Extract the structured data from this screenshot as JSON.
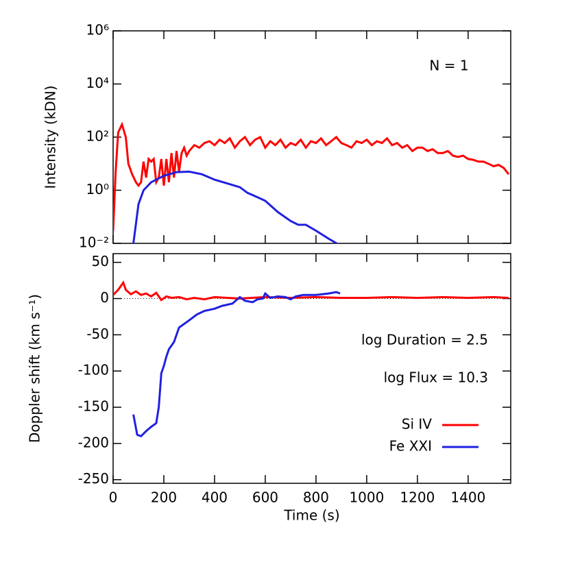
{
  "chart_data": [
    {
      "type": "line",
      "ylabel": "Intensity (kDN)",
      "annotation": "N = 1",
      "log_y": true,
      "xlim": [
        0,
        1568
      ],
      "ylim": [
        0.01,
        1000000
      ],
      "yticks": [
        {
          "value": 1000000,
          "label": "10⁶"
        },
        {
          "value": 10000,
          "label": "10⁴"
        },
        {
          "value": 100,
          "label": "10²"
        },
        {
          "value": 1,
          "label": "10⁰"
        },
        {
          "value": 0.01,
          "label": "10⁻²"
        }
      ],
      "series": [
        {
          "color": "#ff0000",
          "x": [
            0,
            10,
            20,
            35,
            50,
            60,
            75,
            90,
            100,
            110,
            120,
            130,
            140,
            150,
            160,
            170,
            180,
            190,
            200,
            210,
            220,
            230,
            240,
            250,
            260,
            270,
            280,
            290,
            300,
            320,
            340,
            360,
            380,
            400,
            420,
            440,
            460,
            480,
            500,
            520,
            540,
            560,
            580,
            600,
            620,
            640,
            660,
            680,
            700,
            720,
            740,
            760,
            780,
            800,
            820,
            840,
            860,
            880,
            900,
            920,
            940,
            960,
            980,
            1000,
            1020,
            1040,
            1060,
            1080,
            1100,
            1120,
            1140,
            1160,
            1180,
            1200,
            1220,
            1240,
            1260,
            1280,
            1300,
            1320,
            1340,
            1360,
            1380,
            1400,
            1420,
            1440,
            1460,
            1480,
            1500,
            1520,
            1540,
            1560
          ],
          "values": [
            0.03,
            5,
            150,
            300,
            100,
            10,
            4,
            2,
            1.5,
            2,
            12,
            3,
            15,
            12,
            15,
            2,
            3,
            15,
            1.5,
            15,
            2,
            25,
            3,
            30,
            5,
            25,
            40,
            20,
            30,
            50,
            40,
            60,
            70,
            50,
            80,
            60,
            90,
            40,
            70,
            100,
            50,
            80,
            100,
            40,
            70,
            50,
            80,
            40,
            60,
            50,
            80,
            40,
            70,
            60,
            90,
            50,
            70,
            100,
            60,
            50,
            40,
            70,
            60,
            80,
            50,
            70,
            60,
            90,
            50,
            60,
            40,
            50,
            30,
            40,
            40,
            30,
            35,
            25,
            25,
            30,
            20,
            18,
            20,
            15,
            14,
            12,
            12,
            10,
            8,
            9,
            7,
            4
          ]
        },
        {
          "color": "#2020e0",
          "x": [
            80,
            100,
            120,
            150,
            200,
            250,
            300,
            350,
            400,
            450,
            500,
            530,
            560,
            600,
            650,
            700,
            730,
            760,
            800,
            850,
            890
          ],
          "values": [
            0.01,
            0.3,
            1,
            2,
            3.5,
            4.8,
            5,
            4,
            2.5,
            1.8,
            1.3,
            0.8,
            0.6,
            0.4,
            0.15,
            0.07,
            0.05,
            0.05,
            0.03,
            0.015,
            0.009
          ]
        }
      ]
    },
    {
      "type": "line",
      "ylabel": "Doppler shift (km s⁻¹)",
      "xlabel": "Time (s)",
      "annotations": [
        "log Duration = 2.5",
        "log Flux = 10.3"
      ],
      "legend": "lower right",
      "xlim": [
        0,
        1568
      ],
      "xticks": [
        0,
        200,
        400,
        600,
        800,
        1000,
        1200,
        1400
      ],
      "ylim": [
        -255,
        62
      ],
      "yticks": [
        50,
        0,
        -50,
        -100,
        -150,
        -200,
        -250
      ],
      "series": [
        {
          "name": "Si IV",
          "color": "#ff0000",
          "x": [
            0,
            20,
            40,
            50,
            70,
            90,
            110,
            130,
            150,
            170,
            190,
            210,
            230,
            260,
            290,
            320,
            360,
            400,
            450,
            500,
            600,
            700,
            800,
            900,
            1000,
            1100,
            1200,
            1300,
            1400,
            1500,
            1560
          ],
          "values": [
            5,
            12,
            22,
            12,
            6,
            10,
            5,
            7,
            3,
            8,
            -2,
            3,
            1,
            2,
            -1,
            1,
            -1,
            2,
            1,
            0,
            2,
            1,
            2,
            1,
            1,
            2,
            1,
            2,
            1,
            2,
            1
          ]
        },
        {
          "name": "Fe XXI",
          "color": "#2020e0",
          "x": [
            80,
            95,
            110,
            130,
            150,
            170,
            180,
            190,
            200,
            210,
            220,
            240,
            260,
            280,
            300,
            330,
            360,
            400,
            430,
            470,
            500,
            520,
            550,
            570,
            590,
            600,
            620,
            650,
            680,
            700,
            720,
            750,
            800,
            850,
            880,
            895
          ],
          "values": [
            -160,
            -188,
            -190,
            -183,
            -177,
            -172,
            -150,
            -103,
            -93,
            -80,
            -70,
            -60,
            -40,
            -35,
            -30,
            -22,
            -17,
            -14,
            -10,
            -7,
            2,
            -3,
            -5,
            -1,
            0,
            7,
            1,
            3,
            2,
            -1,
            3,
            5,
            5,
            7,
            9,
            7
          ]
        }
      ]
    }
  ]
}
